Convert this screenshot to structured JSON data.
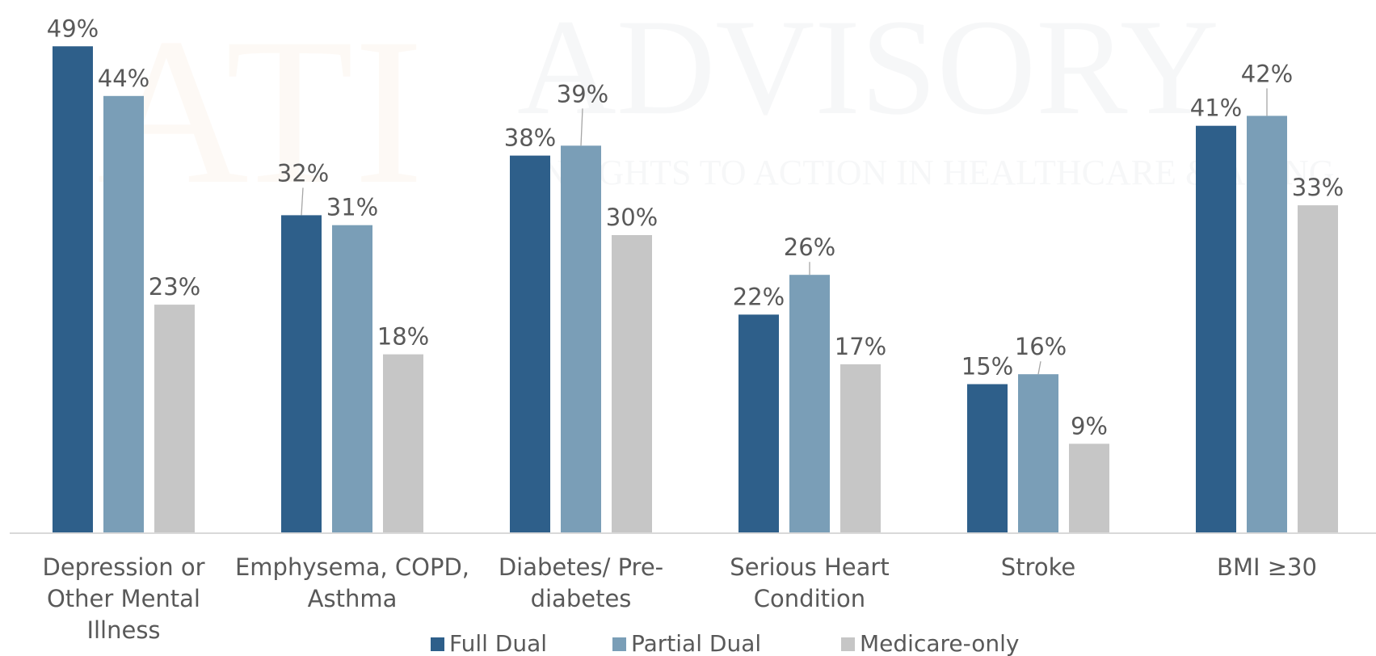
{
  "watermark": {
    "logo": "ATI",
    "word": "ADVISORY",
    "tagline": "INSIGHTS TO ACTION IN HEALTHCARE & AGING"
  },
  "chart_data": {
    "type": "bar",
    "title": "",
    "xlabel": "",
    "ylabel": "",
    "ylim": [
      0,
      50
    ],
    "grid": false,
    "legend_position": "bottom",
    "value_suffix": "%",
    "categories": [
      "Depression or Other Mental Illness",
      "Emphysema, COPD, Asthma",
      "Diabetes/ Pre-diabetes",
      "Serious Heart Condition",
      "Stroke",
      "BMI ≥30"
    ],
    "category_lines": [
      [
        "Depression or",
        "Other Mental",
        "Illness"
      ],
      [
        "Emphysema, COPD,",
        "Asthma"
      ],
      [
        "Diabetes/ Pre-",
        "diabetes"
      ],
      [
        "Serious Heart",
        "Condition"
      ],
      [
        "Stroke"
      ],
      [
        "BMI ≥30"
      ]
    ],
    "series": [
      {
        "name": "Full Dual",
        "color": "#2e5f8a",
        "values": [
          49,
          32,
          38,
          22,
          15,
          41
        ]
      },
      {
        "name": "Partial Dual",
        "color": "#7a9eb7",
        "values": [
          44,
          31,
          39,
          26,
          16,
          42
        ]
      },
      {
        "name": "Medicare-only",
        "color": "#c6c6c6",
        "values": [
          23,
          18,
          30,
          17,
          9,
          33
        ]
      }
    ]
  }
}
